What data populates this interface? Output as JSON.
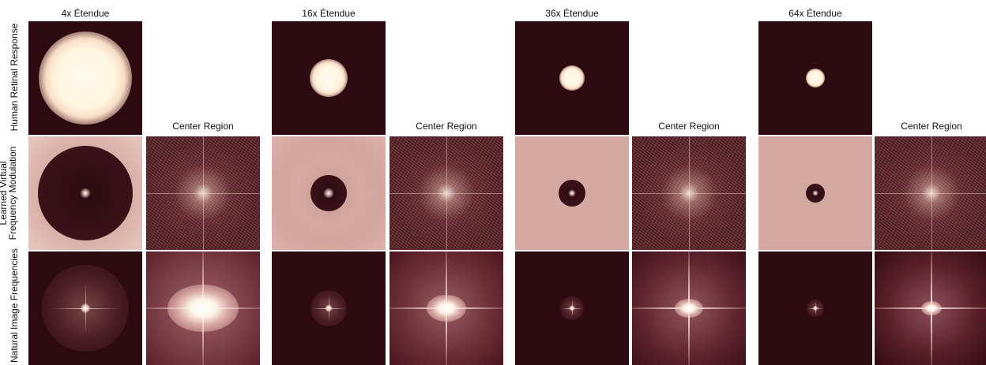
{
  "columns": [
    {
      "title": "4x Étendue",
      "region_title": "Center Region"
    },
    {
      "title": "16x Étendue",
      "region_title": "Center Region"
    },
    {
      "title": "36x Étendue",
      "region_title": "Center Region"
    },
    {
      "title": "64x Étendue",
      "region_title": "Center Region"
    }
  ],
  "row_labels": {
    "retinal": "Human Retinal Response",
    "learned_line1": "Learned Virtual",
    "learned_line2": "Frequency Modulation",
    "natural": "Natural Image Frequencies"
  },
  "colors": {
    "background_dark": "#2d0a10",
    "highlight": "#fff6e0",
    "modulation_tint": "#d7a59f"
  }
}
